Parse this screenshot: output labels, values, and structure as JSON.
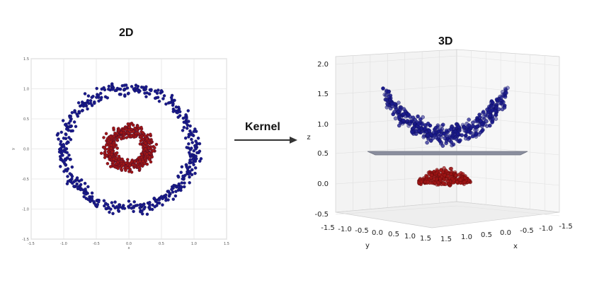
{
  "titles": {
    "left": "2D",
    "right": "3D"
  },
  "arrow_label": "Kernel",
  "colors": {
    "outer": "#1a1a8c",
    "inner": "#a01515",
    "plane": "#8a8e9e"
  },
  "chart_data": [
    {
      "type": "scatter",
      "title": "2D",
      "xlabel": "x",
      "ylabel": "y",
      "xlim": [
        -1.5,
        1.5
      ],
      "ylim": [
        -1.5,
        1.5
      ],
      "xticks": [
        "-1.5",
        "-1.0",
        "-0.5",
        "0.0",
        "0.5",
        "1.0",
        "1.5"
      ],
      "yticks": [
        "1.5",
        "1.0",
        "0.5",
        "0.0",
        "-0.5",
        "-1.0",
        "-1.5"
      ],
      "grid": true,
      "series": [
        {
          "color": "#1a1a8c",
          "ring": {
            "radius": 1.0,
            "noise": 0.1
          },
          "count": 500
        },
        {
          "color": "#a01515",
          "ring": {
            "radius": 0.3,
            "noise": 0.1
          },
          "count": 500
        }
      ]
    },
    {
      "type": "scatter3d",
      "title": "3D",
      "xlabel": "x",
      "ylabel": "y",
      "zlabel": "z",
      "zticks": [
        "2.0",
        "1.5",
        "1.0",
        "0.5",
        "0.0",
        "-0.5"
      ],
      "yticks": [
        "-1.5",
        "-1.0",
        "-0.5",
        "0.0",
        "0.5",
        "1.0",
        "1.5"
      ],
      "xticks": [
        "1.5",
        "1.0",
        "0.5",
        "0.0",
        "-0.5",
        "-1.0",
        "-1.5"
      ],
      "grid": true,
      "separating_plane_z": 0.5
    }
  ]
}
